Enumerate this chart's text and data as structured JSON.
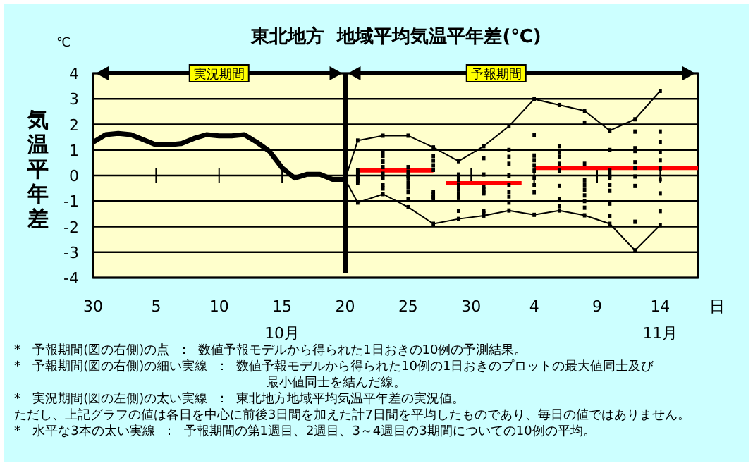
{
  "chart_data": {
    "type": "line",
    "title": "東北地方  地域平均気温平年差(℃)",
    "xlabel": "日",
    "ylabel": "気温平年差",
    "xlim": [
      "--09-30",
      "--11-17"
    ],
    "ylim": [
      -4,
      4
    ],
    "yticks": [
      -4,
      -3,
      -2,
      -1,
      0,
      1,
      2,
      3,
      4
    ],
    "xticks": [
      {
        "value": "--09-30",
        "label": "30"
      },
      {
        "value": "--10-05",
        "label": "5"
      },
      {
        "value": "--10-10",
        "label": "10"
      },
      {
        "value": "--10-15",
        "label": "15\n10月"
      },
      {
        "value": "--10-20",
        "label": "20"
      },
      {
        "value": "--10-25",
        "label": "25"
      },
      {
        "value": "--10-30",
        "label": "30"
      },
      {
        "value": "--11-04",
        "label": "4"
      },
      {
        "value": "--11-09",
        "label": "9"
      },
      {
        "value": "--11-14",
        "label": "14\n11月"
      }
    ],
    "grid": "y",
    "ref_lines": [
      {
        "axis": "x",
        "value": "--10-20",
        "color": "#000000"
      }
    ],
    "series": [
      {
        "type": "line",
        "color": "#000000",
        "x": [
          "--09-30",
          "--10-01",
          "--10-02",
          "--10-03",
          "--10-04",
          "--10-05",
          "--10-06",
          "--10-07",
          "--10-08",
          "--10-09",
          "--10-10",
          "--10-11",
          "--10-12",
          "--10-13",
          "--10-14",
          "--10-15",
          "--10-16",
          "--10-17",
          "--10-18",
          "--10-19",
          "--10-20"
        ],
        "values": [
          1.3,
          1.6,
          1.65,
          1.6,
          1.4,
          1.2,
          1.2,
          1.25,
          1.45,
          1.6,
          1.55,
          1.55,
          1.6,
          1.3,
          0.95,
          0.3,
          -0.1,
          0.05,
          0.05,
          -0.15,
          -0.15
        ]
      },
      {
        "type": "line",
        "color": "#000000",
        "x": [
          "--10-20",
          "--10-21",
          "--10-23",
          "--10-25",
          "--10-27",
          "--10-29",
          "--10-31",
          "--11-02",
          "--11-04",
          "--11-06",
          "--11-08",
          "--11-10",
          "--11-12",
          "--11-14"
        ],
        "values": [
          -0.15,
          1.37,
          1.56,
          1.56,
          1.1,
          0.56,
          1.15,
          1.93,
          2.99,
          2.76,
          2.53,
          1.76,
          2.2,
          3.31
        ]
      },
      {
        "type": "line",
        "color": "#000000",
        "x": [
          "--10-20",
          "--10-21",
          "--10-23",
          "--10-25",
          "--10-27",
          "--10-29",
          "--10-31",
          "--11-02",
          "--11-04",
          "--11-06",
          "--11-08",
          "--11-10",
          "--11-12",
          "--11-14"
        ],
        "values": [
          -0.15,
          -1.06,
          -0.73,
          -1.24,
          -1.89,
          -1.7,
          -1.57,
          -1.37,
          -1.54,
          -1.37,
          -1.56,
          -1.89,
          -2.93,
          -1.94
        ]
      },
      {
        "type": "line",
        "color": "#ff0000",
        "x": [
          "--10-21",
          "--10-27"
        ],
        "values": [
          0.2,
          0.2
        ]
      },
      {
        "type": "line",
        "color": "#ff0000",
        "x": [
          "--10-28",
          "--11-03"
        ],
        "values": [
          -0.3,
          -0.3
        ]
      },
      {
        "type": "line",
        "color": "#ff0000",
        "x": [
          "--11-04",
          "--11-17"
        ],
        "values": [
          0.3,
          0.3
        ]
      },
      {
        "type": "scatter",
        "marker": "square",
        "color": "#000000",
        "x": [
          "--10-21",
          "--10-21",
          "--10-21",
          "--10-21",
          "--10-21",
          "--10-21",
          "--10-21",
          "--10-21",
          "--10-21",
          "--10-21",
          "--10-23",
          "--10-23",
          "--10-23",
          "--10-23",
          "--10-23",
          "--10-23",
          "--10-23",
          "--10-23",
          "--10-23",
          "--10-23",
          "--10-25",
          "--10-25",
          "--10-25",
          "--10-25",
          "--10-25",
          "--10-25",
          "--10-25",
          "--10-25",
          "--10-25",
          "--10-25",
          "--10-27",
          "--10-27",
          "--10-27",
          "--10-27",
          "--10-27",
          "--10-27",
          "--10-27",
          "--10-27",
          "--10-27",
          "--10-27",
          "--10-29",
          "--10-29",
          "--10-29",
          "--10-29",
          "--10-29",
          "--10-29",
          "--10-29",
          "--10-29",
          "--10-29",
          "--10-29",
          "--10-31",
          "--10-31",
          "--10-31",
          "--10-31",
          "--10-31",
          "--10-31",
          "--10-31",
          "--10-31",
          "--10-31",
          "--10-31",
          "--11-02",
          "--11-02",
          "--11-02",
          "--11-02",
          "--11-02",
          "--11-02",
          "--11-02",
          "--11-02",
          "--11-02",
          "--11-02",
          "--11-04",
          "--11-04",
          "--11-04",
          "--11-04",
          "--11-04",
          "--11-04",
          "--11-04",
          "--11-04",
          "--11-04",
          "--11-04",
          "--11-06",
          "--11-06",
          "--11-06",
          "--11-06",
          "--11-06",
          "--11-06",
          "--11-06",
          "--11-06",
          "--11-06",
          "--11-06",
          "--11-08",
          "--11-08",
          "--11-08",
          "--11-08",
          "--11-08",
          "--11-08",
          "--11-08",
          "--11-08",
          "--11-08",
          "--11-08",
          "--11-10",
          "--11-10",
          "--11-10",
          "--11-10",
          "--11-10",
          "--11-10",
          "--11-10",
          "--11-10",
          "--11-10",
          "--11-10",
          "--11-12",
          "--11-12",
          "--11-12",
          "--11-12",
          "--11-12",
          "--11-12",
          "--11-12",
          "--11-12",
          "--11-12",
          "--11-12",
          "--11-14",
          "--11-14",
          "--11-14",
          "--11-14",
          "--11-14",
          "--11-14",
          "--11-14",
          "--11-14",
          "--11-14",
          "--11-14"
        ],
        "values": [
          1.37,
          0.2,
          0.15,
          0.05,
          0,
          -0.1,
          -0.15,
          -0.2,
          -0.3,
          -1.06,
          1.56,
          0.92,
          0.77,
          0.55,
          0.33,
          0.07,
          -0.09,
          -0.37,
          -0.51,
          -0.73,
          1.56,
          0.33,
          0.15,
          0,
          -0.1,
          -0.28,
          -0.46,
          -0.64,
          -0.92,
          -1.24,
          1.1,
          0.77,
          0.59,
          0.4,
          0.22,
          -0.64,
          -0.75,
          -0.85,
          -0.92,
          -1.89,
          0.56,
          0.04,
          -0.08,
          -0.18,
          -0.37,
          -0.55,
          -0.73,
          -0.88,
          -1.38,
          -1.7,
          1.15,
          0.68,
          0.04,
          -0.45,
          -0.55,
          -0.65,
          -0.7,
          -1.38,
          -1.47,
          -1.57,
          1.93,
          1.0,
          0.73,
          0.46,
          0,
          -0.37,
          -0.64,
          -0.82,
          -1.06,
          -1.37,
          2.99,
          1.6,
          0.78,
          0.6,
          0.4,
          0.19,
          -0.1,
          -0.37,
          -0.65,
          -1.54,
          2.76,
          1.15,
          0.93,
          0.74,
          0.46,
          0.19,
          -0.41,
          -0.93,
          -1.2,
          -1.37,
          2.53,
          2.07,
          0.46,
          -0.19,
          -0.37,
          -0.56,
          -0.78,
          -1.0,
          -1.26,
          -1.56,
          1.76,
          1.0,
          0.19,
          0,
          -0.1,
          -0.37,
          -0.6,
          -1.1,
          -1.6,
          -1.89,
          2.2,
          1.72,
          1.07,
          0.96,
          0.52,
          0.3,
          -0.04,
          -0.41,
          -1.81,
          -2.93,
          3.31,
          1.72,
          1.3,
          0.93,
          0.6,
          0.28,
          -0.15,
          -0.7,
          -1.39,
          -1.94
        ]
      }
    ],
    "annotations": [
      "℃",
      "*   予報期間(図の右側)の点  ：  数値予報モデルから得られた1日おきの10例の予測結果。",
      "*   予報期間(図の右側)の細い実線  ：  数値予報モデルから得られた10例の1日おきのプロットの最大値同士及び",
      "最小値同士を結んだ線。",
      "*   実況期間(図の左側)の太い実線  ：  東北地方地域平均気温平年差の実況値。",
      "ただし、上記グラフの値は各日を中心に前後3日間を加えた計7日間を平均したものであり、毎日の値ではありません。",
      "*   水平な3本の太い実線  ：  予報期間の第1週目、2週目、3～4週目の3期間についての10例の平均。",
      "実況期間",
      "予報期間"
    ]
  }
}
